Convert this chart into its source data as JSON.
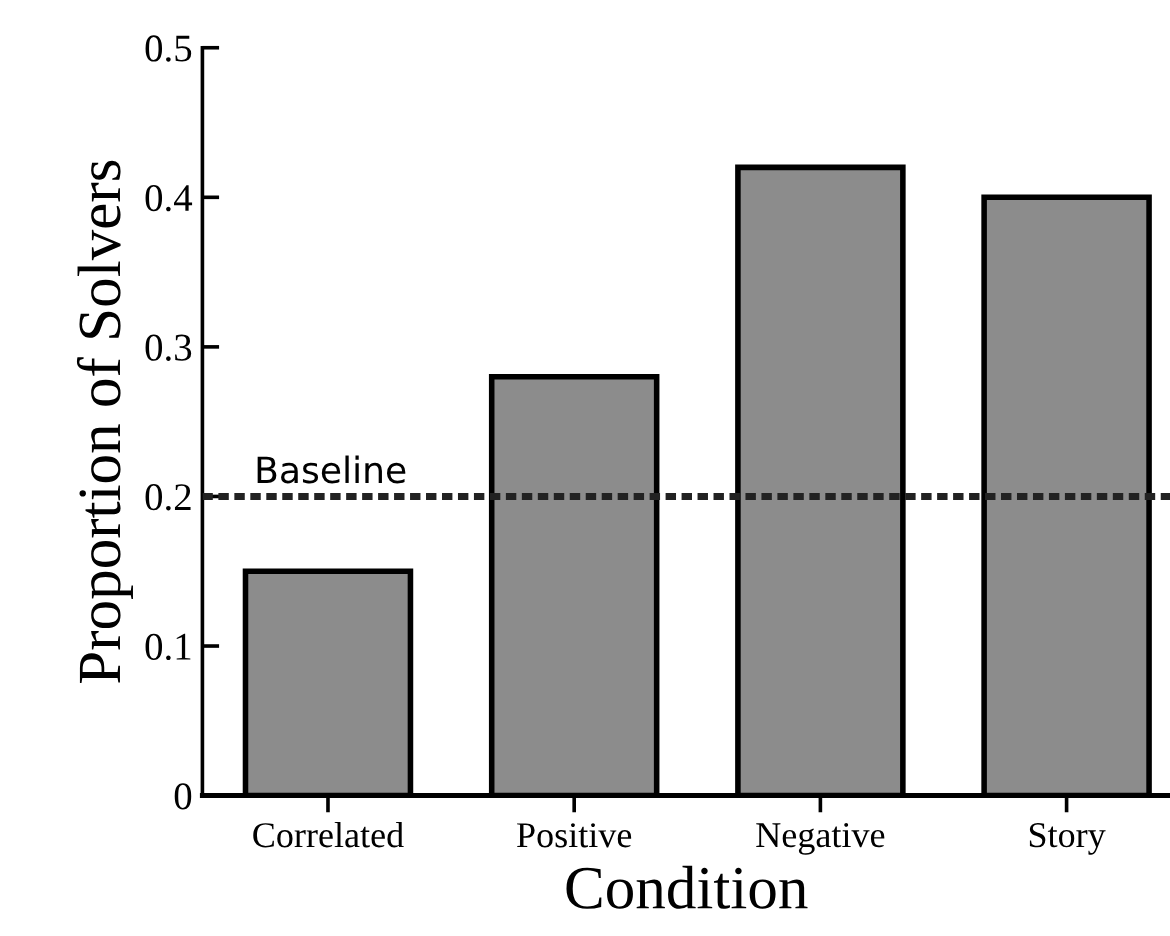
{
  "chart_data": {
    "type": "bar",
    "xlabel": "Condition",
    "ylabel": "Proportion of Solvers",
    "categories": [
      "Correlated",
      "Positive",
      "Negative",
      "Story"
    ],
    "values": [
      0.15,
      0.28,
      0.42,
      0.4
    ],
    "color": "#8c8c8c",
    "ylim": [
      0,
      0.5
    ],
    "yticks": [
      0,
      0.1,
      0.2,
      0.3,
      0.4,
      0.5
    ],
    "grid": false,
    "legend": false,
    "ref_lines": [
      {
        "axis": "y",
        "value": 0.2,
        "label": "Baseline",
        "color": "#222222",
        "line_style": "dotted"
      }
    ]
  }
}
